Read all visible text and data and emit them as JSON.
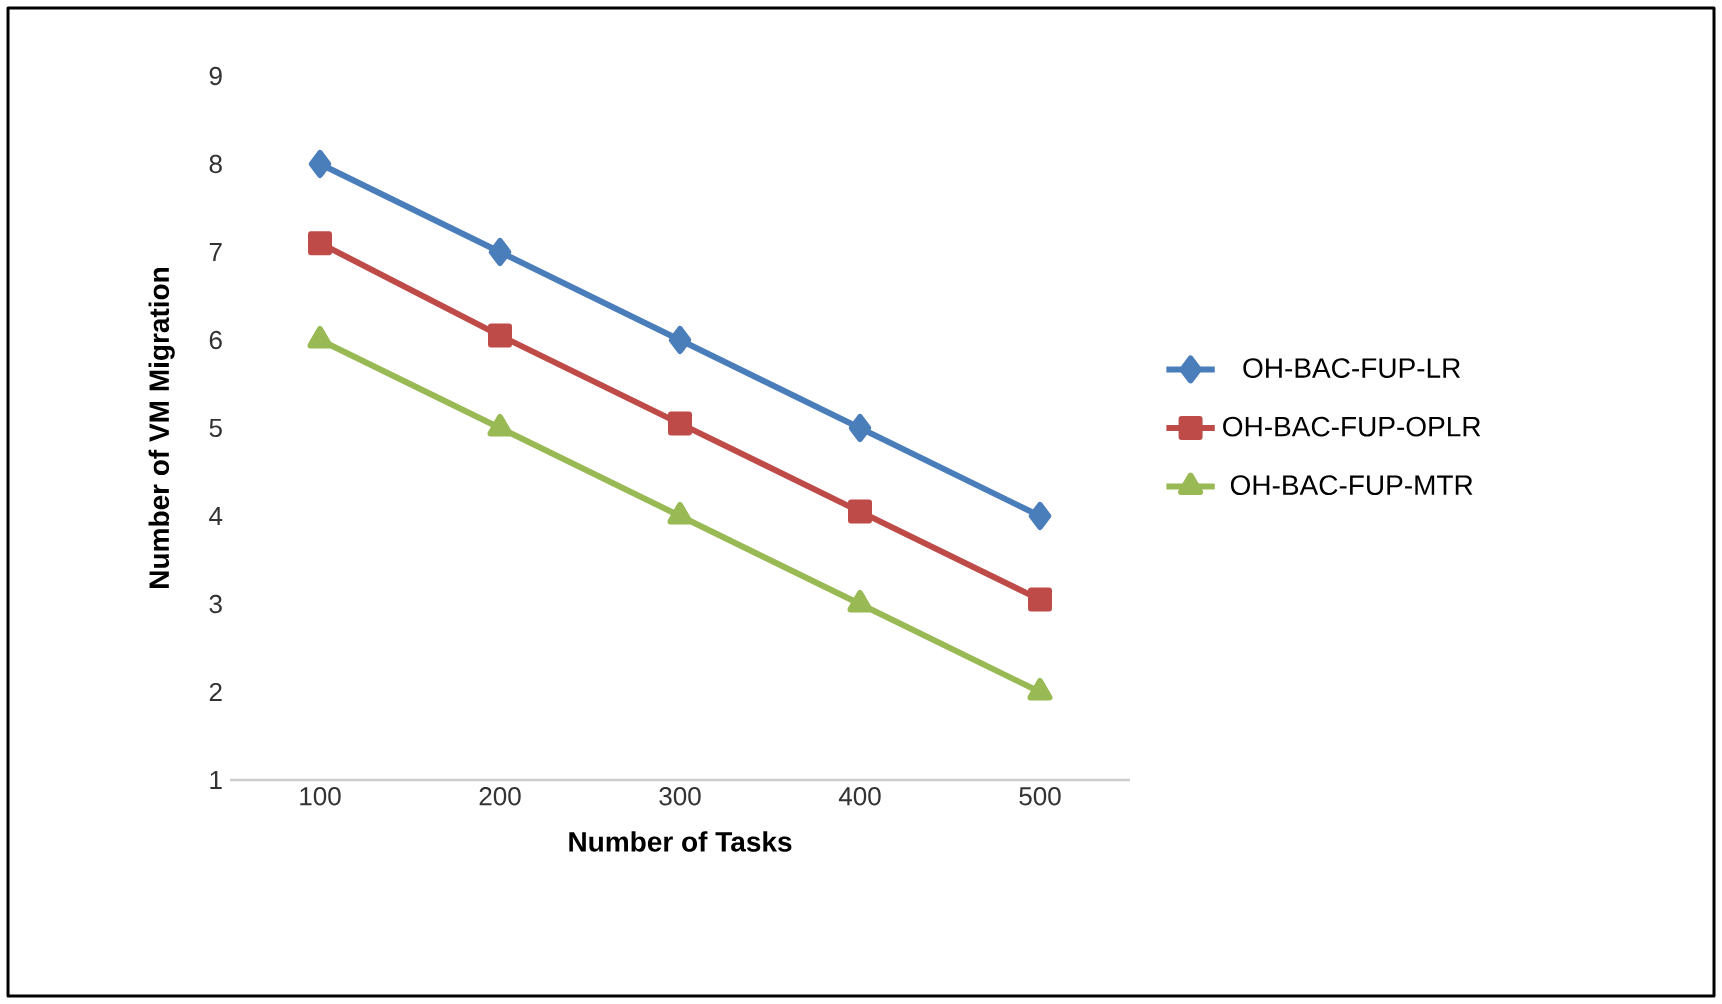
{
  "chart_data": {
    "type": "line",
    "xlabel": "Number of Tasks",
    "ylabel": "Number of VM Migration",
    "categories": [
      "100",
      "200",
      "300",
      "400",
      "500"
    ],
    "series": [
      {
        "name": "OH-BAC-FUP-LR",
        "color": "#4a7ebb",
        "marker": "diamond",
        "values": [
          8,
          7,
          6,
          5,
          4
        ]
      },
      {
        "name": "OH-BAC-FUP-OPLR",
        "color": "#be4b48",
        "marker": "square",
        "values": [
          7.1,
          6.05,
          5.05,
          4.05,
          3.05
        ]
      },
      {
        "name": "OH-BAC-FUP-MTR",
        "color": "#98b954",
        "marker": "triangle",
        "values": [
          6,
          5,
          4,
          3,
          2
        ]
      }
    ],
    "ylim": [
      1,
      9
    ],
    "yticks": [
      1,
      2,
      3,
      4,
      5,
      6,
      7,
      8,
      9
    ],
    "grid": false,
    "legend": "right",
    "line_style": "solid"
  }
}
